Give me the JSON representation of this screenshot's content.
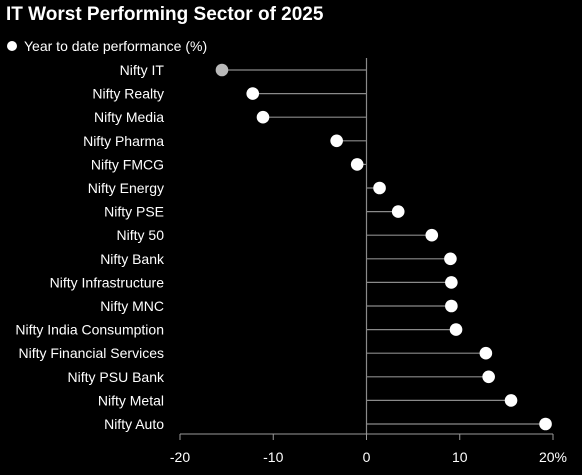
{
  "chart_data": {
    "type": "scatter",
    "title": "IT Worst Performing Sector of 2025",
    "legend": {
      "label": "Year to date performance (%)",
      "placement": "top-left"
    },
    "categories": [
      "Nifty IT",
      "Nifty Realty",
      "Nifty Media",
      "Nifty Pharma",
      "Nifty FMCG",
      "Nifty Energy",
      "Nifty PSE",
      "Nifty 50",
      "Nifty Bank",
      "Nifty Infrastructure",
      "Nifty MNC",
      "Nifty India Consumption",
      "Nifty Financial Services",
      "Nifty PSU Bank",
      "Nifty Metal",
      "Nifty Auto"
    ],
    "values": [
      -15.5,
      -12.2,
      -11.1,
      -3.2,
      -1.0,
      1.4,
      3.4,
      7.0,
      9.0,
      9.1,
      9.1,
      9.6,
      12.8,
      13.1,
      15.5,
      19.2
    ],
    "xlim": [
      -20,
      20
    ],
    "xticks": [
      "-20",
      "-10",
      "0",
      "10",
      "20%"
    ],
    "xtick_values": [
      -20,
      -10,
      0,
      10,
      20
    ],
    "grid": false,
    "colors": {
      "background": "#000000",
      "point": "#ffffff",
      "highlight": "#b9b9b9",
      "stem": "#8a8a8a"
    },
    "highlight_index": 0
  }
}
